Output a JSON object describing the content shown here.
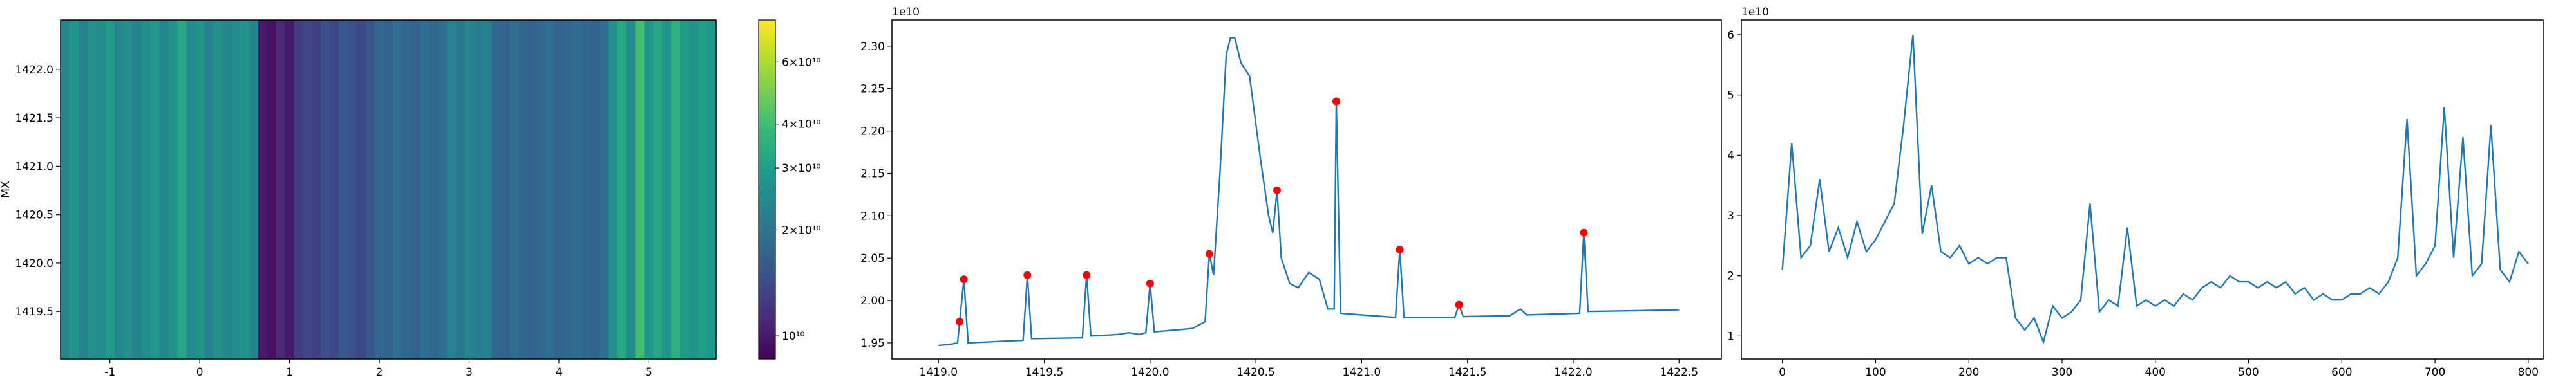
{
  "chart_data": [
    {
      "type": "heatmap",
      "ylabel": "MX",
      "xlim": [
        -1.55,
        5.75
      ],
      "ylim": [
        1419.01,
        1422.51
      ],
      "xticks": [
        -1,
        0,
        1,
        2,
        3,
        4,
        5
      ],
      "yticks": [
        1419.5,
        {
          "value": 1420.0,
          "label": "1420.0"
        },
        1420.5,
        {
          "value": 1421.0,
          "label": "1421.0"
        },
        1421.5,
        {
          "value": 1422.0,
          "label": "1422.0"
        }
      ],
      "col_width": 0.1,
      "x": [
        -1.5,
        -1.4,
        -1.3,
        -1.2,
        -1.1,
        -1.0,
        -0.9,
        -0.8,
        -0.7,
        -0.6,
        -0.5,
        -0.4,
        -0.3,
        -0.2,
        -0.1,
        0.0,
        0.1,
        0.2,
        0.3,
        0.4,
        0.5,
        0.6,
        0.7,
        0.8,
        0.9,
        1.0,
        1.1,
        1.2,
        1.3,
        1.4,
        1.5,
        1.6,
        1.7,
        1.8,
        1.9,
        2.0,
        2.1,
        2.2,
        2.3,
        2.4,
        2.5,
        2.6,
        2.7,
        2.8,
        2.9,
        3.0,
        3.1,
        3.2,
        3.3,
        3.4,
        3.5,
        3.6,
        3.7,
        3.8,
        3.9,
        4.0,
        4.1,
        4.2,
        4.3,
        4.4,
        4.5,
        4.6,
        4.7,
        4.8,
        4.9,
        5.0,
        5.1,
        5.2,
        5.3,
        5.4,
        5.5,
        5.6,
        5.7
      ],
      "values": [
        24000000000.0,
        27000000000.0,
        23000000000.0,
        26000000000.0,
        25000000000.0,
        29000000000.0,
        24000000000.0,
        26000000000.0,
        23000000000.0,
        25000000000.0,
        28000000000.0,
        24000000000.0,
        26000000000.0,
        32000000000.0,
        25000000000.0,
        27000000000.0,
        23000000000.0,
        26000000000.0,
        24000000000.0,
        25000000000.0,
        27000000000.0,
        24000000000.0,
        10000000000.0,
        9500000000.0,
        11000000000.0,
        10000000000.0,
        13000000000.0,
        14000000000.0,
        13000000000.0,
        15000000000.0,
        14000000000.0,
        16000000000.0,
        15000000000.0,
        14000000000.0,
        16000000000.0,
        18000000000.0,
        17000000000.0,
        19000000000.0,
        18000000000.0,
        17000000000.0,
        19000000000.0,
        18000000000.0,
        19000000000.0,
        23000000000.0,
        21000000000.0,
        24000000000.0,
        22000000000.0,
        23000000000.0,
        18000000000.0,
        17000000000.0,
        19000000000.0,
        18000000000.0,
        17000000000.0,
        18000000000.0,
        19000000000.0,
        17000000000.0,
        18000000000.0,
        19000000000.0,
        18000000000.0,
        17000000000.0,
        19000000000.0,
        26000000000.0,
        33000000000.0,
        25000000000.0,
        40000000000.0,
        28000000000.0,
        32000000000.0,
        27000000000.0,
        35000000000.0,
        29000000000.0,
        27000000000.0,
        30000000000.0,
        28000000000.0
      ],
      "colorscale": "viridis",
      "clim": [
        8600000000.0,
        79000000000.0
      ],
      "color_log": true,
      "cticks": [
        {
          "value": 10000000000.0,
          "label": "10¹⁰"
        },
        {
          "value": 20000000000.0,
          "label": "2×10¹⁰"
        },
        {
          "value": 30000000000.0,
          "label": "3×10¹⁰"
        },
        {
          "value": 40000000000.0,
          "label": "4×10¹⁰"
        },
        {
          "value": 60000000000.0,
          "label": "6×10¹⁰"
        }
      ]
    },
    {
      "type": "line",
      "offset_label": "1e10",
      "xlim": [
        1418.78,
        1422.7
      ],
      "ylim": [
        1.931,
        2.331
      ],
      "xticks": [
        {
          "value": 1419.0,
          "label": "1419.0"
        },
        1419.5,
        {
          "value": 1420.0,
          "label": "1420.0"
        },
        1420.5,
        {
          "value": 1421.0,
          "label": "1421.0"
        },
        1421.5,
        {
          "value": 1422.0,
          "label": "1422.0"
        },
        1422.5
      ],
      "yticks": [
        1.95,
        {
          "value": 2.0,
          "label": "2.00"
        },
        2.05,
        {
          "value": 2.1,
          "label": "2.10"
        },
        2.15,
        {
          "value": 2.2,
          "label": "2.20"
        },
        2.25,
        {
          "value": 2.3,
          "label": "2.30"
        }
      ],
      "color": "#1f77b4",
      "x": [
        1419.0,
        1419.05,
        1419.09,
        1419.1,
        1419.12,
        1419.14,
        1419.4,
        1419.42,
        1419.44,
        1419.68,
        1419.7,
        1419.72,
        1419.85,
        1419.9,
        1419.95,
        1419.98,
        1420.0,
        1420.02,
        1420.2,
        1420.26,
        1420.28,
        1420.3,
        1420.33,
        1420.36,
        1420.38,
        1420.4,
        1420.43,
        1420.47,
        1420.52,
        1420.56,
        1420.58,
        1420.6,
        1420.62,
        1420.66,
        1420.7,
        1420.75,
        1420.8,
        1420.84,
        1420.87,
        1420.88,
        1420.9,
        1421.0,
        1421.16,
        1421.18,
        1421.2,
        1421.44,
        1421.46,
        1421.48,
        1421.7,
        1421.75,
        1421.78,
        1422.03,
        1422.05,
        1422.07,
        1422.3,
        1422.5
      ],
      "values": [
        1.947,
        1.948,
        1.95,
        1.975,
        2.025,
        1.95,
        1.953,
        2.03,
        1.955,
        1.956,
        2.03,
        1.958,
        1.96,
        1.962,
        1.96,
        1.962,
        2.02,
        1.963,
        1.967,
        1.975,
        2.055,
        2.03,
        2.15,
        2.29,
        2.31,
        2.31,
        2.28,
        2.265,
        2.17,
        2.1,
        2.08,
        2.13,
        2.05,
        2.02,
        2.015,
        2.033,
        2.025,
        1.99,
        1.99,
        2.235,
        1.985,
        1.983,
        1.98,
        2.06,
        1.98,
        1.98,
        1.995,
        1.981,
        1.982,
        1.99,
        1.983,
        1.985,
        2.08,
        1.987,
        1.988,
        1.989
      ],
      "peaks": {
        "color": "#ff0000",
        "x": [
          1419.1,
          1419.12,
          1419.42,
          1419.7,
          1420.0,
          1420.28,
          1420.6,
          1420.88,
          1421.18,
          1421.46,
          1422.05
        ],
        "values": [
          1.975,
          2.025,
          2.03,
          2.03,
          2.02,
          2.055,
          2.13,
          2.235,
          2.06,
          1.995,
          2.08
        ]
      }
    },
    {
      "type": "line",
      "offset_label": "1e10",
      "xlim": [
        -44,
        816
      ],
      "ylim": [
        0.62,
        6.245
      ],
      "xticks": [
        0,
        100,
        200,
        300,
        400,
        500,
        600,
        700,
        800
      ],
      "yticks": [
        1,
        2,
        3,
        4,
        5,
        6
      ],
      "color": "#1f77b4",
      "x": [
        0,
        10,
        20,
        30,
        40,
        50,
        60,
        70,
        80,
        90,
        100,
        110,
        120,
        130,
        140,
        150,
        160,
        170,
        180,
        190,
        200,
        210,
        220,
        230,
        240,
        250,
        260,
        270,
        280,
        290,
        300,
        310,
        320,
        330,
        340,
        350,
        360,
        370,
        380,
        390,
        400,
        410,
        420,
        430,
        440,
        450,
        460,
        470,
        480,
        490,
        500,
        510,
        520,
        530,
        540,
        550,
        560,
        570,
        580,
        590,
        600,
        610,
        620,
        630,
        640,
        650,
        660,
        670,
        680,
        690,
        700,
        710,
        720,
        730,
        740,
        750,
        760,
        770,
        780,
        790,
        800
      ],
      "values": [
        2.1,
        4.2,
        2.3,
        2.5,
        3.6,
        2.4,
        2.8,
        2.3,
        2.9,
        2.4,
        2.6,
        2.9,
        3.2,
        4.5,
        6.0,
        2.7,
        3.5,
        2.4,
        2.3,
        2.5,
        2.2,
        2.3,
        2.2,
        2.3,
        2.3,
        1.3,
        1.1,
        1.3,
        0.9,
        1.5,
        1.3,
        1.4,
        1.6,
        3.2,
        1.4,
        1.6,
        1.5,
        2.8,
        1.5,
        1.6,
        1.5,
        1.6,
        1.5,
        1.7,
        1.6,
        1.8,
        1.9,
        1.8,
        2.0,
        1.9,
        1.9,
        1.8,
        1.9,
        1.8,
        1.9,
        1.7,
        1.8,
        1.6,
        1.7,
        1.6,
        1.6,
        1.7,
        1.7,
        1.8,
        1.7,
        1.9,
        2.3,
        4.6,
        2.0,
        2.2,
        2.5,
        4.8,
        2.3,
        4.3,
        2.0,
        2.2,
        4.5,
        2.1,
        1.9,
        2.4,
        2.2
      ]
    }
  ]
}
